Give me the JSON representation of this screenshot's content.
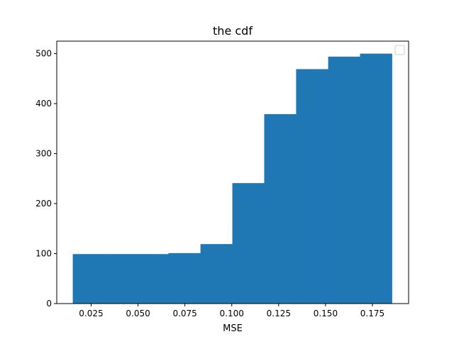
{
  "chart_data": {
    "type": "bar",
    "title": "the cdf",
    "xlabel": "MSE",
    "ylabel": "",
    "bar_color": "#1f77b4",
    "xlim": [
      0.00666,
      0.1943
    ],
    "ylim": [
      0,
      525
    ],
    "bins": [
      {
        "x0": 0.0152,
        "x1": 0.0322,
        "value": 99
      },
      {
        "x0": 0.0322,
        "x1": 0.0492,
        "value": 99
      },
      {
        "x0": 0.0492,
        "x1": 0.0662,
        "value": 99
      },
      {
        "x0": 0.0662,
        "x1": 0.0833,
        "value": 101
      },
      {
        "x0": 0.0833,
        "x1": 0.1003,
        "value": 119
      },
      {
        "x0": 0.1003,
        "x1": 0.1173,
        "value": 241
      },
      {
        "x0": 0.1173,
        "x1": 0.1343,
        "value": 379
      },
      {
        "x0": 0.1343,
        "x1": 0.1514,
        "value": 469
      },
      {
        "x0": 0.1514,
        "x1": 0.1684,
        "value": 494
      },
      {
        "x0": 0.1684,
        "x1": 0.1854,
        "value": 500
      }
    ],
    "xticks": [
      0.025,
      0.05,
      0.075,
      0.1,
      0.125,
      0.15,
      0.175
    ],
    "xtick_labels": [
      "0.025",
      "0.050",
      "0.075",
      "0.100",
      "0.125",
      "0.150",
      "0.175"
    ],
    "yticks": [
      0,
      100,
      200,
      300,
      400,
      500
    ],
    "ytick_labels": [
      "0",
      "100",
      "200",
      "300",
      "400",
      "500"
    ],
    "legend": {
      "location": "upper-right",
      "entries": []
    },
    "grid": false
  }
}
